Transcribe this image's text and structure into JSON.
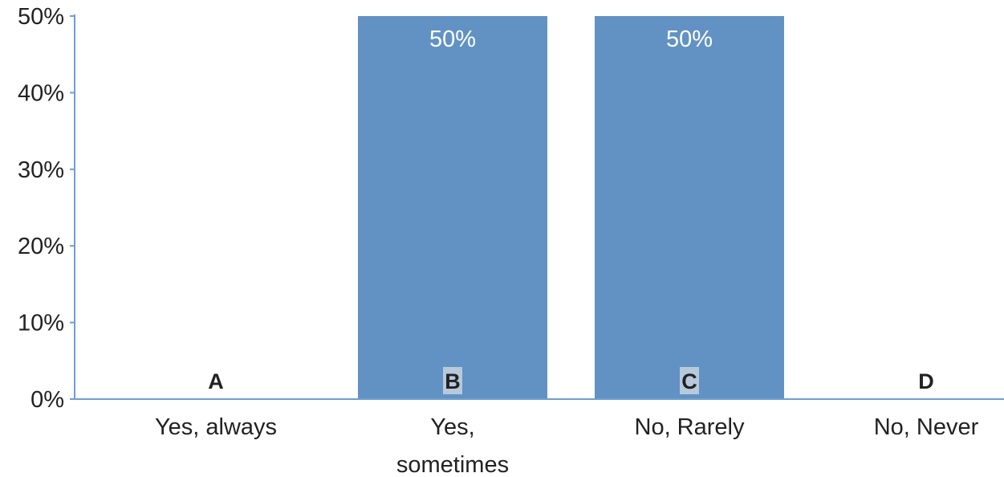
{
  "chart_data": {
    "type": "bar",
    "categories": [
      "Yes, always",
      "Yes, sometimes",
      "No, Rarely",
      "No, Never"
    ],
    "category_lines": [
      [
        "Yes, always"
      ],
      [
        "Yes,",
        "sometimes"
      ],
      [
        "No, Rarely"
      ],
      [
        "No, Never"
      ]
    ],
    "letters": [
      "A",
      "B",
      "C",
      "D"
    ],
    "values": [
      0,
      50,
      50,
      0
    ],
    "value_labels": [
      "",
      "50%",
      "50%",
      ""
    ],
    "ylim": [
      0,
      50
    ],
    "yticks": [
      0,
      10,
      20,
      30,
      40,
      50
    ],
    "ytick_labels": [
      "0%",
      "10%",
      "20%",
      "30%",
      "40%",
      "50%"
    ],
    "title": "",
    "xlabel": "",
    "ylabel": "",
    "grid": false,
    "colors": {
      "bar": "#6192c3",
      "axis": "#6f9fcf",
      "letter_highlight": "#b7c9dc"
    }
  }
}
